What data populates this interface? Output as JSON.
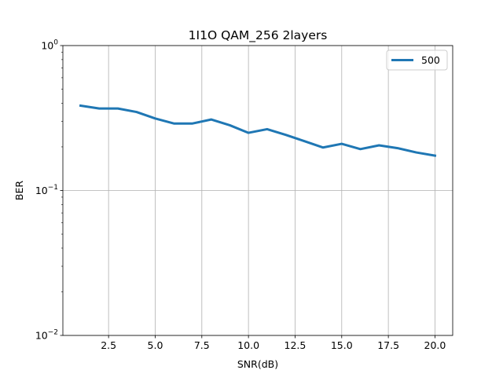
{
  "chart_data": {
    "type": "line",
    "title": "1I1O QAM_256 2layers",
    "xlabel": "SNR(dB)",
    "ylabel": "BER",
    "yscale": "log",
    "xlim": [
      0.05,
      20.95
    ],
    "ylim": [
      0.01,
      1
    ],
    "grid": true,
    "legend_position": "upper right",
    "x_ticks": [
      {
        "value": 2.5,
        "label": "2.5"
      },
      {
        "value": 5.0,
        "label": "5.0"
      },
      {
        "value": 7.5,
        "label": "7.5"
      },
      {
        "value": 10.0,
        "label": "10.0"
      },
      {
        "value": 12.5,
        "label": "12.5"
      },
      {
        "value": 15.0,
        "label": "15.0"
      },
      {
        "value": 17.5,
        "label": "17.5"
      },
      {
        "value": 20.0,
        "label": "20.0"
      }
    ],
    "y_ticks": [
      {
        "value": 0.01,
        "base": "10",
        "exp": "−2"
      },
      {
        "value": 0.1,
        "base": "10",
        "exp": "−1"
      },
      {
        "value": 1,
        "base": "10",
        "exp": "0"
      }
    ],
    "x": [
      1,
      2,
      3,
      4,
      5,
      6,
      7,
      8,
      9,
      10,
      11,
      12,
      13,
      14,
      15,
      16,
      17,
      18,
      19,
      20
    ],
    "series": [
      {
        "name": "500",
        "color": "#1f77b4",
        "values": [
          0.385,
          0.368,
          0.368,
          0.348,
          0.314,
          0.29,
          0.29,
          0.309,
          0.282,
          0.25,
          0.265,
          0.242,
          0.219,
          0.198,
          0.21,
          0.193,
          0.205,
          0.196,
          0.183,
          0.174
        ]
      }
    ]
  }
}
